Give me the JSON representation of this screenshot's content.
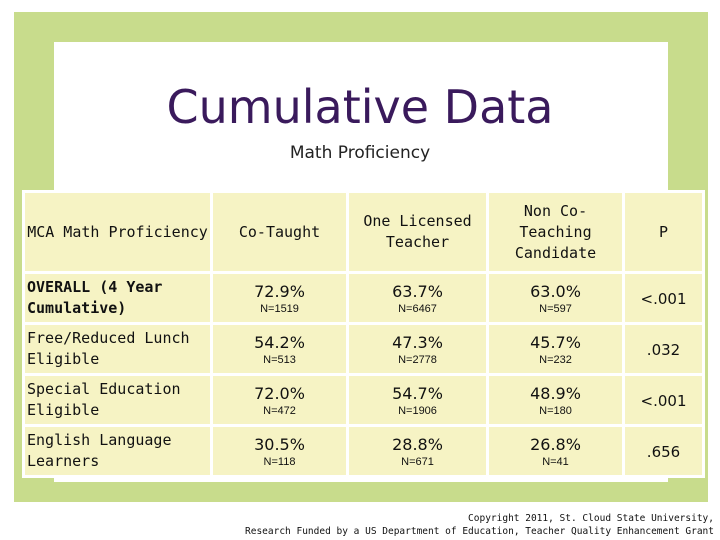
{
  "title": "Cumulative Data",
  "subtitle": "Math Proficiency",
  "table": {
    "headers": [
      "MCA Math Proficiency",
      "Co-Taught",
      "One Licensed Teacher",
      "Non Co-Teaching Candidate",
      "P"
    ],
    "rows": [
      {
        "label": "OVERALL (4 Year Cumulative)",
        "co_taught": "72.9%",
        "co_taught_n": "N=1519",
        "one_licensed": "63.7%",
        "one_licensed_n": "N=6467",
        "non_co": "63.0%",
        "non_co_n": "N=597",
        "p": "<.001"
      },
      {
        "label": "Free/Reduced Lunch Eligible",
        "co_taught": "54.2%",
        "co_taught_n": "N=513",
        "one_licensed": "47.3%",
        "one_licensed_n": "N=2778",
        "non_co": "45.7%",
        "non_co_n": "N=232",
        "p": ".032"
      },
      {
        "label": "Special Education Eligible",
        "co_taught": "72.0%",
        "co_taught_n": "N=472",
        "one_licensed": "54.7%",
        "one_licensed_n": "N=1906",
        "non_co": "48.9%",
        "non_co_n": "N=180",
        "p": "<.001"
      },
      {
        "label": "English Language Learners",
        "co_taught": "30.5%",
        "co_taught_n": "N=118",
        "one_licensed": "28.8%",
        "one_licensed_n": "N=671",
        "non_co": "26.8%",
        "non_co_n": "N=41",
        "p": ".656"
      }
    ]
  },
  "copyright": {
    "line1": "Copyright 2011, St. Cloud State University,",
    "line2": "Research Funded by a US Department of Education, Teacher Quality Enhancement Grant"
  },
  "colors": {
    "frame": "#c8dc8c",
    "cell": "#f6f3c4",
    "title": "#3a1a5c"
  }
}
